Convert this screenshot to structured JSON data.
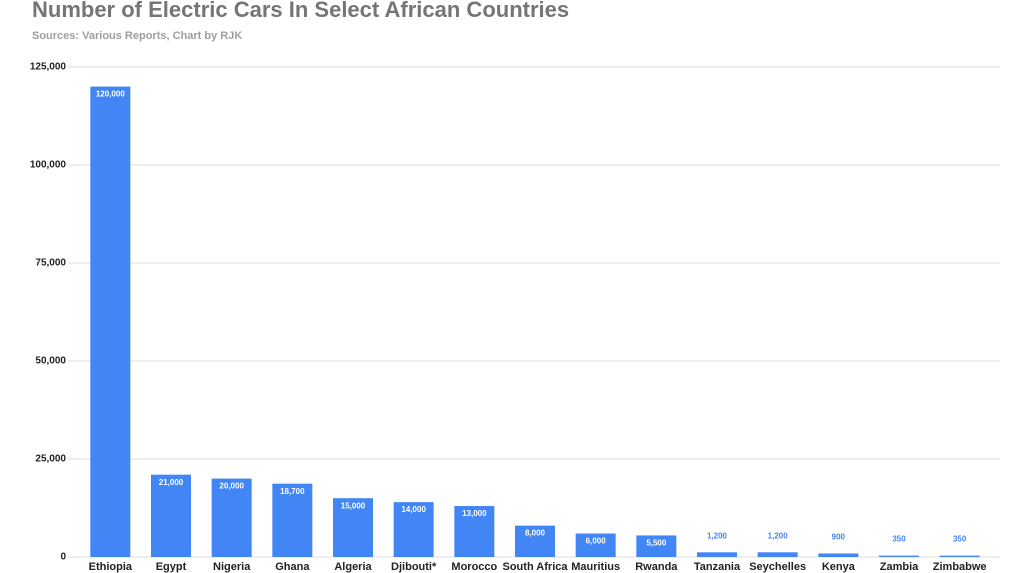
{
  "chart_data": {
    "type": "bar",
    "title": "Number of Electric Cars In Select African Countries",
    "subtitle": "Sources: Various Reports,   Chart by RJK",
    "categories": [
      "Ethiopia",
      "Egypt",
      "Nigeria",
      "Ghana",
      "Algeria",
      "Djibouti*",
      "Morocco",
      "South Africa",
      "Mauritius",
      "Rwanda",
      "Tanzania",
      "Seychelles",
      "Kenya",
      "Zambia",
      "Zimbabwe"
    ],
    "values": [
      120000,
      21000,
      20000,
      18700,
      15000,
      14000,
      13000,
      8000,
      6000,
      5500,
      1200,
      1200,
      900,
      350,
      350
    ],
    "value_labels": [
      "120,000",
      "21,000",
      "20,000",
      "18,700",
      "15,000",
      "14,000",
      "13,000",
      "8,000",
      "6,000",
      "5,500",
      "1,200",
      "1,200",
      "900",
      "350",
      "350"
    ],
    "color": "#4285f4",
    "ylim": [
      0,
      125000
    ],
    "yticks": [
      0,
      {
        "value": 25000,
        "label": "25,000"
      },
      {
        "value": 50000,
        "label": "50,000"
      },
      {
        "value": 75000,
        "label": "75,000"
      },
      {
        "value": 100000,
        "label": "100,000"
      },
      {
        "value": 125000,
        "label": "125,000"
      }
    ],
    "grid": true
  }
}
